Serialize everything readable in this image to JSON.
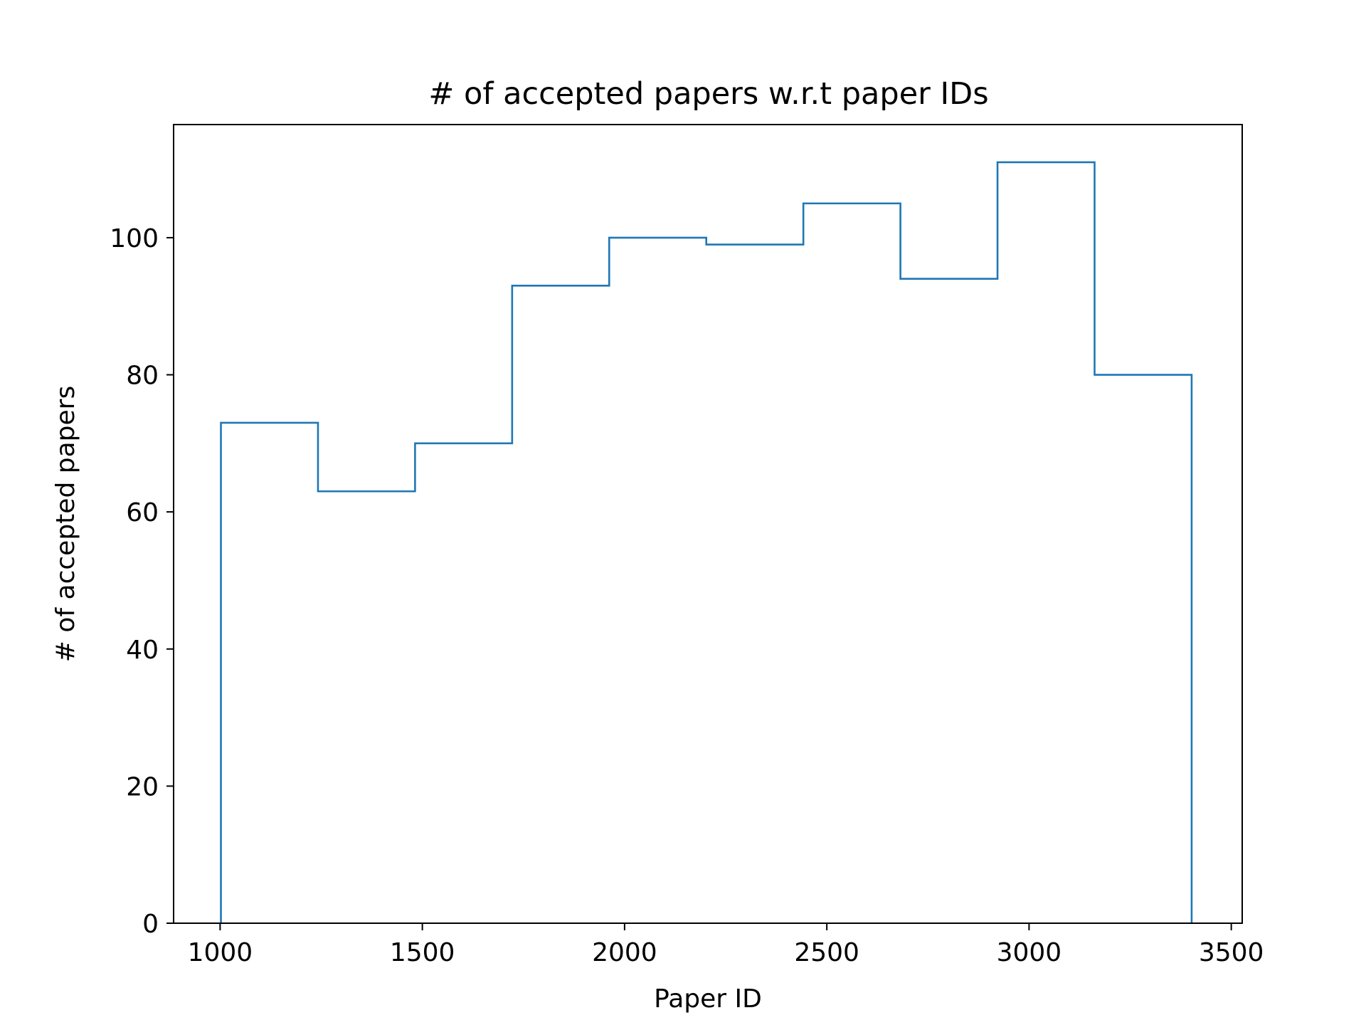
{
  "chart_data": {
    "type": "histogram-step",
    "title": "# of accepted papers w.r.t paper IDs",
    "xlabel": "Paper ID",
    "ylabel": "# of accepted papers",
    "xlim": [
      885,
      3527
    ],
    "ylim": [
      0,
      116.5
    ],
    "xticks": [
      1000,
      1500,
      2000,
      2500,
      3000,
      3500
    ],
    "yticks": [
      0,
      20,
      40,
      60,
      80,
      100
    ],
    "bin_edges": [
      1002,
      1242,
      1482,
      1722,
      1962,
      2202,
      2442,
      2682,
      2922,
      3162,
      3402
    ],
    "counts": [
      73,
      63,
      70,
      93,
      100,
      99,
      105,
      94,
      111,
      80
    ],
    "series_color": "#1f77b4",
    "grid": false,
    "legend": "none"
  }
}
